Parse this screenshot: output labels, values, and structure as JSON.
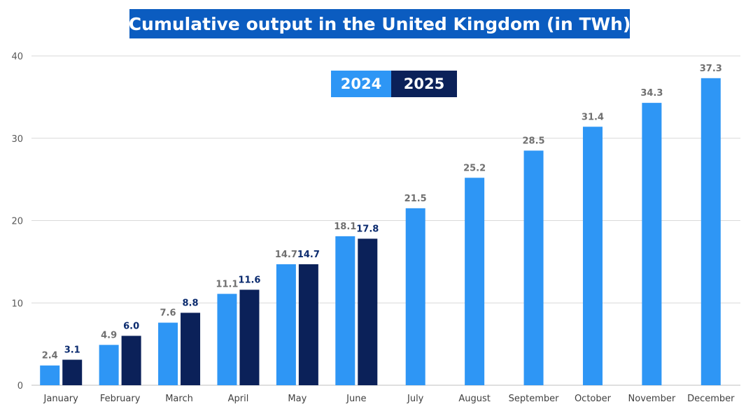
{
  "chart_data": {
    "type": "bar",
    "title": "Cumulative output in the United Kingdom (in TWh)",
    "xlabel": "",
    "ylabel": "",
    "ylim": [
      0,
      40
    ],
    "yticks": [
      0,
      10,
      20,
      30,
      40
    ],
    "grid": true,
    "legend_position": "top-center",
    "categories": [
      "January",
      "February",
      "March",
      "April",
      "May",
      "June",
      "July",
      "August",
      "September",
      "October",
      "November",
      "December"
    ],
    "series": [
      {
        "name": "2024",
        "color": "#2e96f5",
        "values": [
          2.4,
          4.9,
          7.6,
          11.1,
          14.7,
          18.1,
          21.5,
          25.2,
          28.5,
          31.4,
          34.3,
          37.3
        ]
      },
      {
        "name": "2025",
        "color": "#0b2159",
        "values": [
          3.1,
          6.0,
          8.8,
          11.6,
          14.7,
          17.8,
          null,
          null,
          null,
          null,
          null,
          null
        ]
      }
    ]
  }
}
